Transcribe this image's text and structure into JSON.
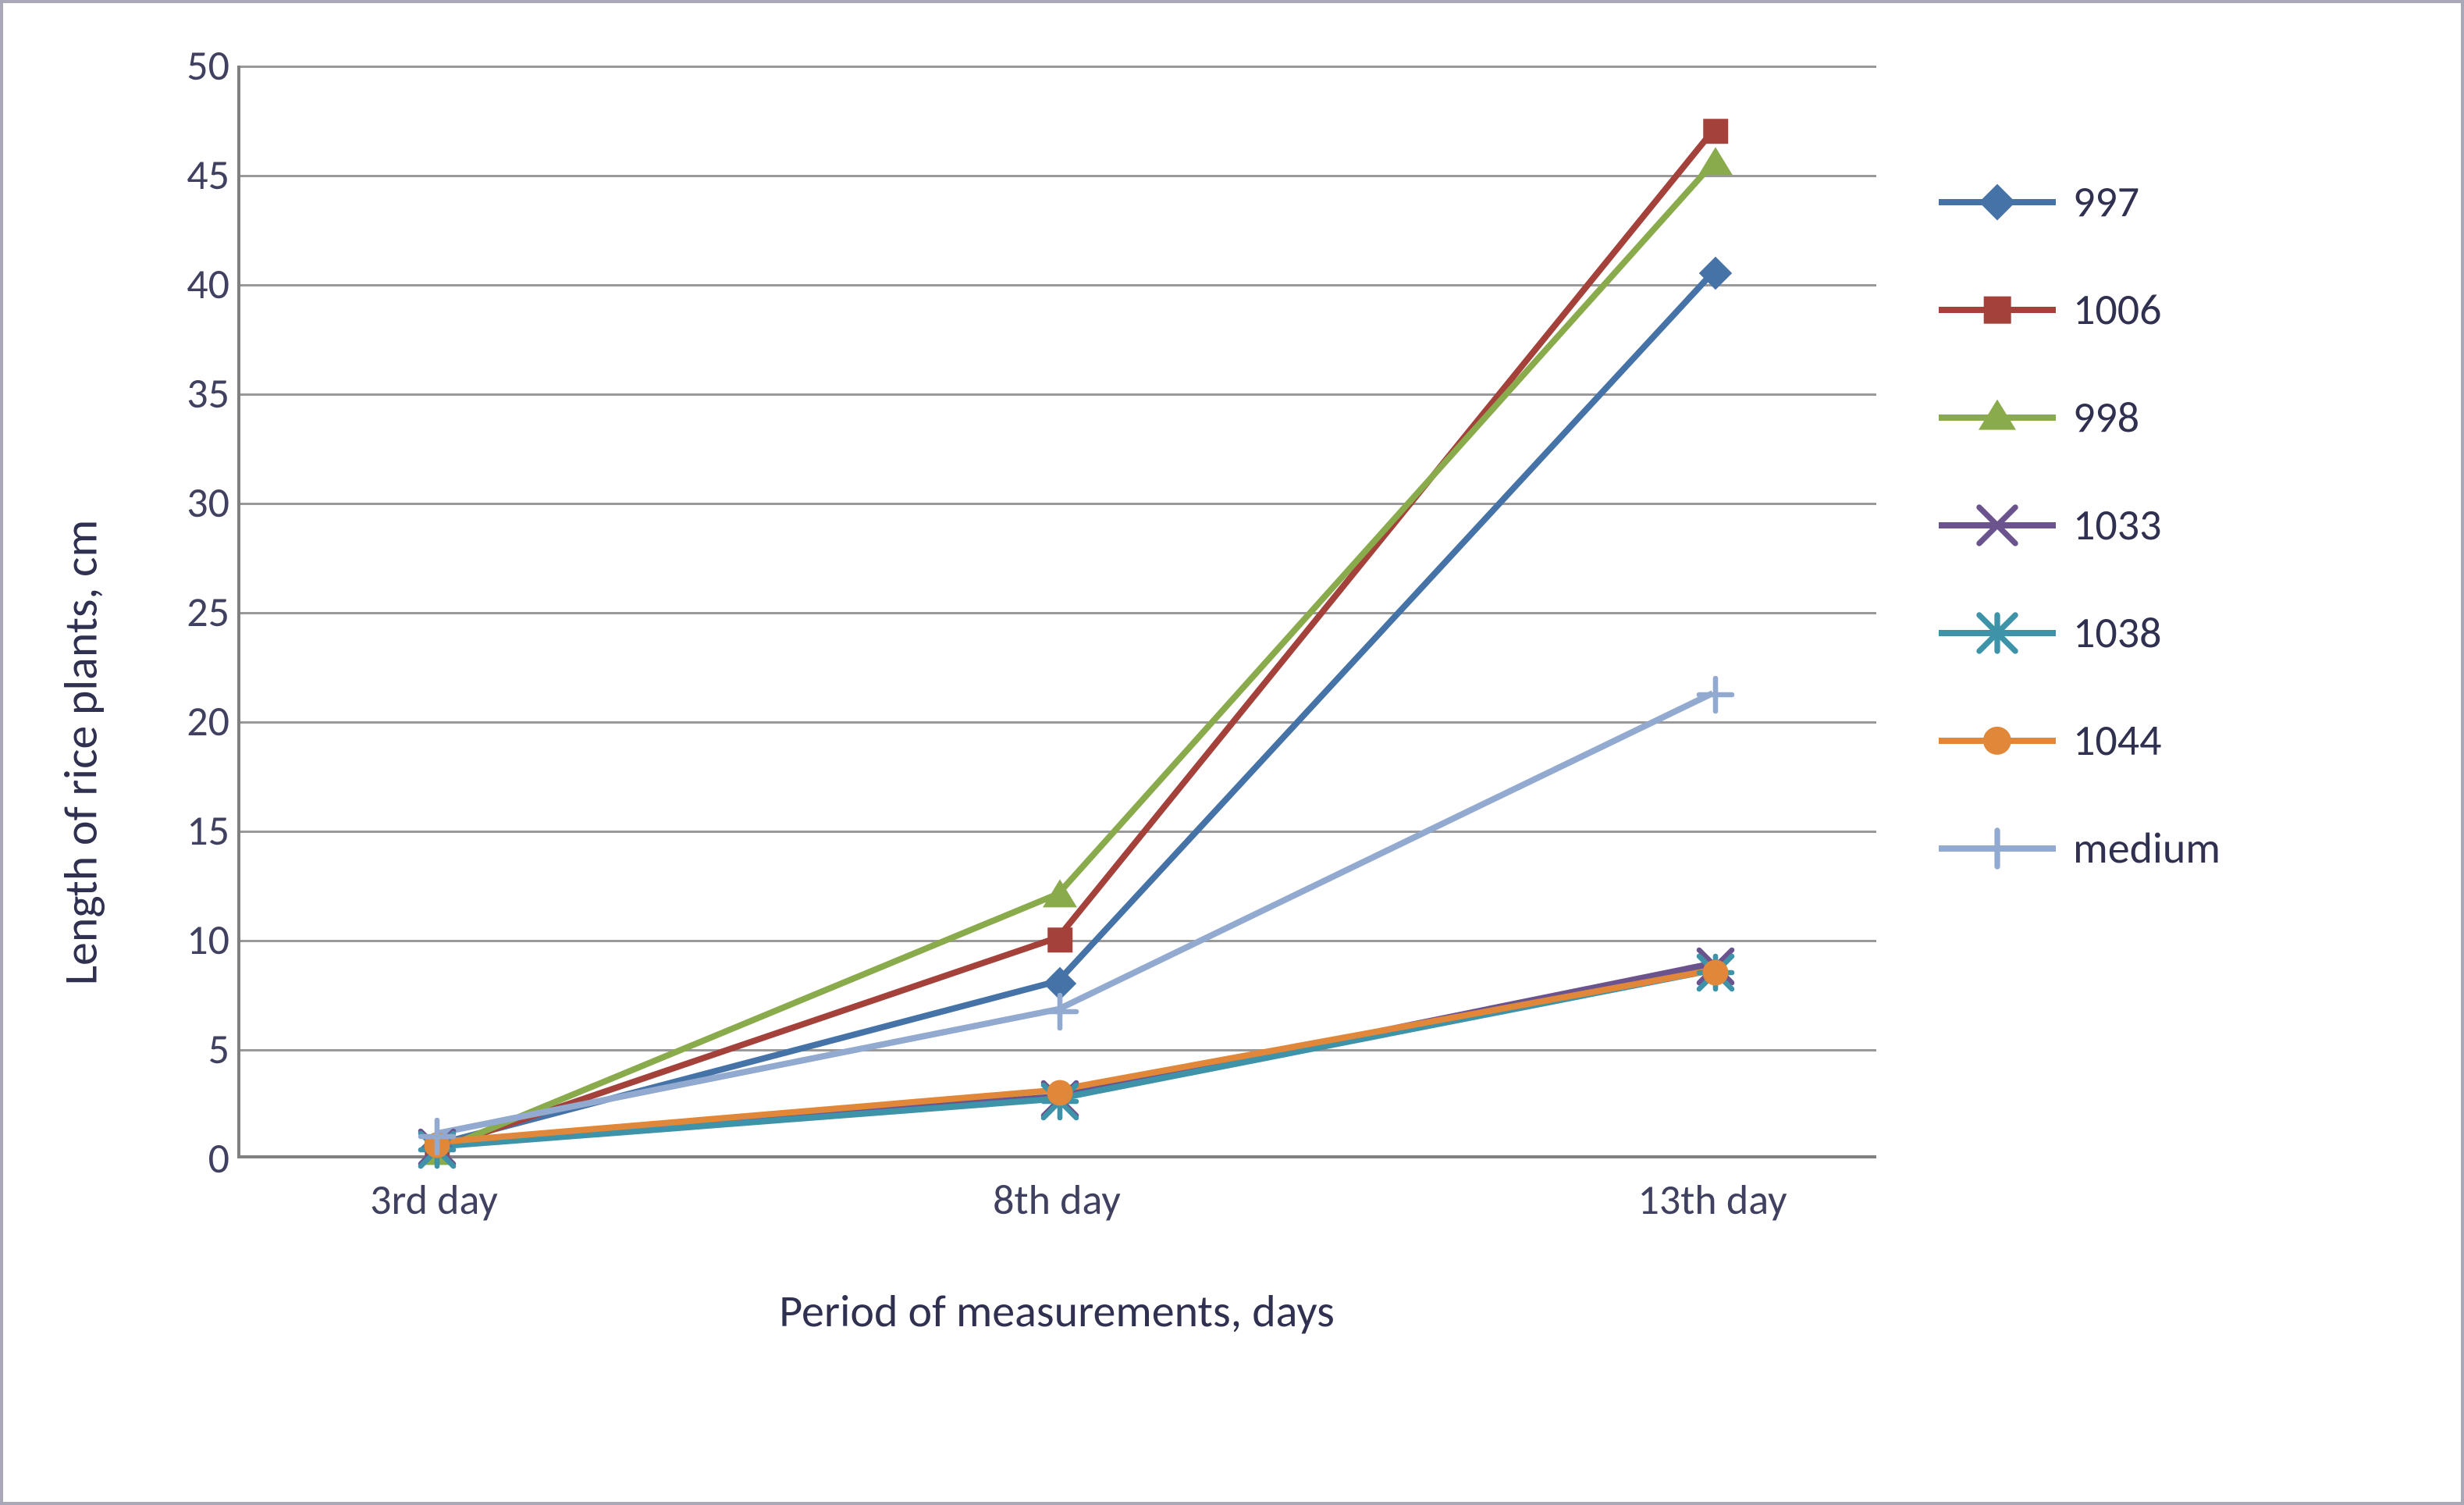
{
  "chart": {
    "type": "line",
    "background_color": "#ffffff",
    "border_color": "#a8a8b8",
    "grid_color": "#808080",
    "axis_color": "#808080",
    "text_color": "#303050",
    "y_title": "Length of rice plants, cm",
    "x_title": "Period of measurements, days",
    "y_title_fontsize": 60,
    "x_title_fontsize": 58,
    "tick_fontsize": 54,
    "legend_fontsize": 56,
    "ylim": [
      0,
      50
    ],
    "ytick_step": 5,
    "x_categories": [
      "3rd day",
      "8th day",
      "13th day"
    ],
    "x_positions": [
      0.12,
      0.5,
      0.9
    ],
    "line_width": 8,
    "marker_size": 30,
    "series": [
      {
        "name": "997",
        "color": "#4572a7",
        "marker": "diamond",
        "values": [
          0.5,
          8.0,
          40.5
        ]
      },
      {
        "name": "1006",
        "color": "#a3413a",
        "marker": "square",
        "values": [
          0.3,
          10.0,
          47.0
        ]
      },
      {
        "name": "998",
        "color": "#8aab4b",
        "marker": "triangle",
        "values": [
          0.2,
          12.0,
          45.5
        ]
      },
      {
        "name": "1033",
        "color": "#6b548d",
        "marker": "x",
        "values": [
          0.5,
          2.7,
          8.8
        ]
      },
      {
        "name": "1038",
        "color": "#3f93a8",
        "marker": "asterisk",
        "values": [
          0.4,
          2.6,
          8.5
        ]
      },
      {
        "name": "1044",
        "color": "#e1873a",
        "marker": "circle",
        "values": [
          0.6,
          3.0,
          8.5
        ]
      },
      {
        "name": "medium",
        "color": "#93aad0",
        "marker": "plus",
        "values": [
          1.0,
          6.7,
          21.2
        ]
      }
    ]
  }
}
